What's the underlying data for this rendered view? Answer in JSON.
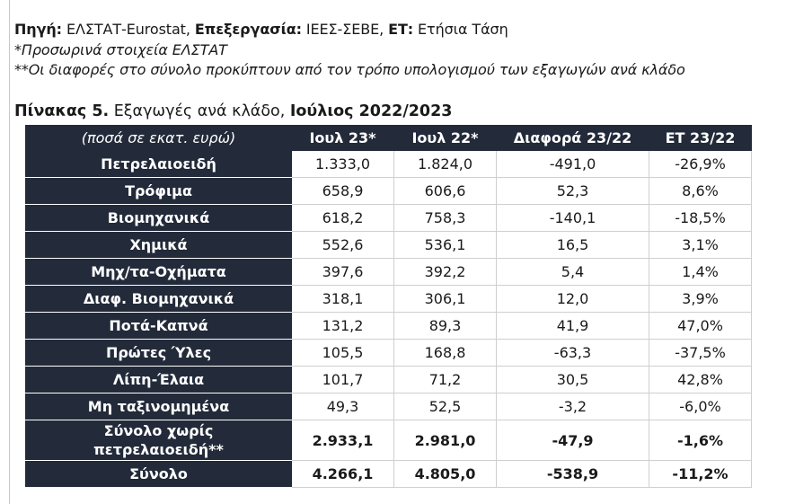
{
  "notes": {
    "source_label": "Πηγή:",
    "source_value": " ΕΛΣΤΑΤ-Eurostat, ",
    "processing_label": "Επεξεργασία:",
    "processing_value": " ΙΕΕΣ-ΣΕΒΕ, ",
    "et_label": "ΕΤ:",
    "et_value": " Ετήσια Τάση",
    "footnote_1": "*Προσωρινά στοιχεία ΕΛΣΤΑΤ",
    "footnote_2": "**Οι διαφορές στο σύνολο προκύπτουν από τον τρόπο υπολογισμού των εξαγωγών ανά κλάδο"
  },
  "title": {
    "label": "Πίνακας 5.",
    "text": " Εξαγωγές ανά κλάδο, ",
    "period": "Ιούλιος 2022/2023"
  },
  "table": {
    "headers": [
      "(ποσά σε εκατ. ευρώ)",
      "Ιουλ 23*",
      "Ιουλ 22*",
      "Διαφορά 23/22",
      "ΕΤ 23/22"
    ],
    "rows": [
      {
        "label": "Πετρελαιοειδή",
        "v23": "1.333,0",
        "v22": "1.824,0",
        "diff": "-491,0",
        "et": "-26,9%"
      },
      {
        "label": "Τρόφιμα",
        "v23": "658,9",
        "v22": "606,6",
        "diff": "52,3",
        "et": "8,6%"
      },
      {
        "label": "Βιομηχανικά",
        "v23": "618,2",
        "v22": "758,3",
        "diff": "-140,1",
        "et": "-18,5%"
      },
      {
        "label": "Χημικά",
        "v23": "552,6",
        "v22": "536,1",
        "diff": "16,5",
        "et": "3,1%"
      },
      {
        "label": "Μηχ/τα-Οχήματα",
        "v23": "397,6",
        "v22": "392,2",
        "diff": "5,4",
        "et": "1,4%"
      },
      {
        "label": "Διαφ. Βιομηχανικά",
        "v23": "318,1",
        "v22": "306,1",
        "diff": "12,0",
        "et": "3,9%"
      },
      {
        "label": "Ποτά-Καπνά",
        "v23": "131,2",
        "v22": "89,3",
        "diff": "41,9",
        "et": "47,0%"
      },
      {
        "label": "Πρώτες Ύλες",
        "v23": "105,5",
        "v22": "168,8",
        "diff": "-63,3",
        "et": "-37,5%"
      },
      {
        "label": "Λίπη-Έλαια",
        "v23": "101,7",
        "v22": "71,2",
        "diff": "30,5",
        "et": "42,8%"
      },
      {
        "label": "Μη ταξινομημένα",
        "v23": "49,3",
        "v22": "52,5",
        "diff": "-3,2",
        "et": "-6,0%"
      }
    ],
    "subtotal": {
      "label_line1": "Σύνολο χωρίς",
      "label_line2": "πετρελαιοειδή**",
      "v23": "2.933,1",
      "v22": "2.981,0",
      "diff": "-47,9",
      "et": "-1,6%"
    },
    "total": {
      "label": "Σύνολο",
      "v23": "4.266,1",
      "v22": "4.805,0",
      "diff": "-538,9",
      "et": "-11,2%"
    }
  }
}
